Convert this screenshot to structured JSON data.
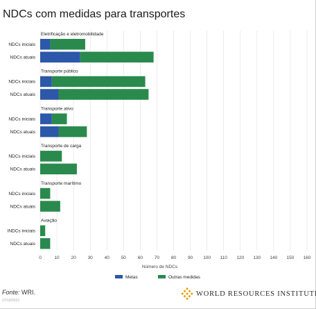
{
  "title": "NDCs com medidas para transportes",
  "colors": {
    "metas": "#2d57a8",
    "outras": "#2a8a4d",
    "grid": "#e0e0e0",
    "text": "#333333"
  },
  "chart_data": {
    "type": "bar",
    "orientation": "horizontal",
    "stacked": true,
    "xlabel": "Número de NDCs",
    "xlim": [
      0,
      160
    ],
    "xticks": [
      0,
      10,
      20,
      30,
      40,
      50,
      60,
      70,
      80,
      90,
      100,
      110,
      120,
      130,
      140,
      150,
      160
    ],
    "grid": true,
    "legend_position": "bottom",
    "series": [
      {
        "name": "Metas",
        "color": "#2d57a8"
      },
      {
        "name": "Outras medidas",
        "color": "#2a8a4d"
      }
    ],
    "groups": [
      {
        "name": "Eletrificação e eletromobilidade",
        "bars": [
          {
            "label": "NDCs iniciais",
            "values": [
              6,
              21
            ]
          },
          {
            "label": "NDCs atuais",
            "values": [
              24,
              44
            ]
          }
        ]
      },
      {
        "name": "Transporte público",
        "bars": [
          {
            "label": "NDCs iniciais",
            "values": [
              7,
              56
            ]
          },
          {
            "label": "NDCs atuais",
            "values": [
              11,
              54
            ]
          }
        ]
      },
      {
        "name": "Transporte ativo",
        "bars": [
          {
            "label": "NDCs iniciais",
            "values": [
              7,
              9
            ]
          },
          {
            "label": "NDCs atuais",
            "values": [
              11,
              17
            ]
          }
        ]
      },
      {
        "name": "Transporte de carga",
        "bars": [
          {
            "label": "NDCs iniciais",
            "values": [
              0,
              13
            ]
          },
          {
            "label": "NDCs atuais",
            "values": [
              0,
              22
            ]
          }
        ]
      },
      {
        "name": "Transporte marítimo",
        "bars": [
          {
            "label": "NDCs iniciais",
            "values": [
              0,
              6
            ]
          },
          {
            "label": "NDCs atuais",
            "values": [
              0,
              12
            ]
          }
        ]
      },
      {
        "name": "Aviação",
        "bars": [
          {
            "label": "INDCs iniciais",
            "values": [
              0,
              3
            ]
          },
          {
            "label": "NDCs atuais",
            "values": [
              0,
              6
            ]
          }
        ]
      }
    ]
  },
  "footer": {
    "source_label": "Fonte:",
    "source_text": " WRI.",
    "date": "27/10/2022",
    "logo_text": "WORLD RESOURCES INSTITUTE",
    "logo_icon": "wri-logo-icon"
  }
}
